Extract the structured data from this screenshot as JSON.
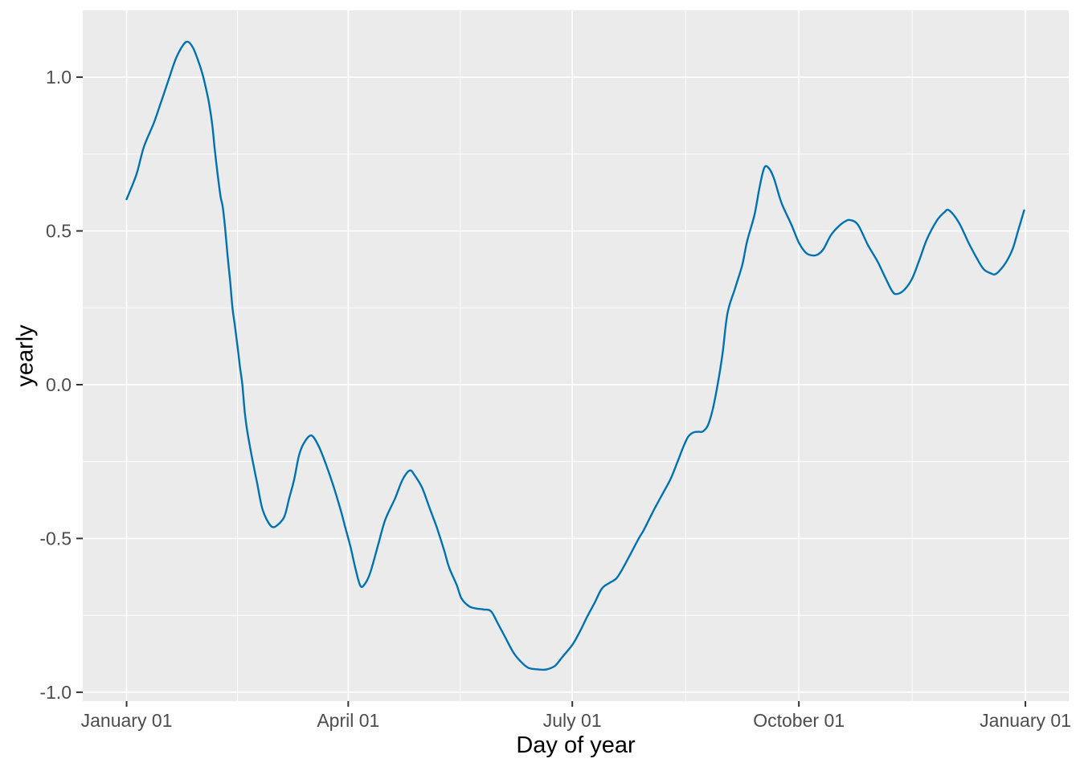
{
  "figure": {
    "background": "#FFFFFF",
    "panel_background": "#EBEBEB",
    "grid_color": "#FFFFFF",
    "tick_color": "#333333",
    "axis_text_color": "#4D4D4D",
    "axis_title_color": "#000000"
  },
  "chart_data": {
    "type": "line",
    "title": "",
    "xlabel": "Day of year",
    "ylabel": "yearly",
    "legend": "none",
    "grid": true,
    "xlim": [
      -17.8,
      382.6
    ],
    "ylim": [
      -1.029,
      1.217
    ],
    "x_ticks": [
      {
        "day": 0,
        "label": "January 01"
      },
      {
        "day": 90,
        "label": "April 01"
      },
      {
        "day": 181,
        "label": "July 01"
      },
      {
        "day": 273,
        "label": "October 01"
      },
      {
        "day": 365,
        "label": "January 01"
      }
    ],
    "x_minor_days": [
      45,
      135.5,
      227,
      319
    ],
    "y_ticks": [
      {
        "value": 1.0,
        "label": "1.0"
      },
      {
        "value": 0.5,
        "label": "0.5"
      },
      {
        "value": 0.0,
        "label": "0.0"
      },
      {
        "value": -0.5,
        "label": "-0.5"
      },
      {
        "value": -1.0,
        "label": "-1.0"
      }
    ],
    "y_minor_values": [
      0.75,
      0.25,
      -0.25,
      -0.75
    ],
    "series": [
      {
        "name": "yearly",
        "color": "#0072B2",
        "points": [
          [
            0,
            0.603
          ],
          [
            4,
            0.684
          ],
          [
            7,
            0.773
          ],
          [
            11,
            0.85
          ],
          [
            14,
            0.919
          ],
          [
            17,
            0.99
          ],
          [
            20,
            1.06
          ],
          [
            23,
            1.105
          ],
          [
            25,
            1.115
          ],
          [
            27,
            1.095
          ],
          [
            29,
            1.055
          ],
          [
            31,
            1.005
          ],
          [
            33,
            0.935
          ],
          [
            34,
            0.89
          ],
          [
            35,
            0.83
          ],
          [
            36,
            0.75
          ],
          [
            38,
            0.62
          ],
          [
            39,
            0.58
          ],
          [
            40,
            0.51
          ],
          [
            41,
            0.42
          ],
          [
            42,
            0.34
          ],
          [
            43,
            0.25
          ],
          [
            44,
            0.19
          ],
          [
            45,
            0.128
          ],
          [
            46,
            0.06
          ],
          [
            47,
            0.0
          ],
          [
            48,
            -0.09
          ],
          [
            49,
            -0.151
          ],
          [
            51,
            -0.24
          ],
          [
            53,
            -0.32
          ],
          [
            55,
            -0.4
          ],
          [
            57,
            -0.44
          ],
          [
            59,
            -0.462
          ],
          [
            61,
            -0.458
          ],
          [
            64,
            -0.43
          ],
          [
            66,
            -0.37
          ],
          [
            68,
            -0.31
          ],
          [
            70,
            -0.23
          ],
          [
            72,
            -0.19
          ],
          [
            75,
            -0.165
          ],
          [
            78,
            -0.2
          ],
          [
            81,
            -0.26
          ],
          [
            84,
            -0.33
          ],
          [
            87,
            -0.41
          ],
          [
            89,
            -0.47
          ],
          [
            91,
            -0.53
          ],
          [
            93,
            -0.6
          ],
          [
            95,
            -0.655
          ],
          [
            97,
            -0.645
          ],
          [
            99,
            -0.61
          ],
          [
            102,
            -0.525
          ],
          [
            105,
            -0.44
          ],
          [
            109,
            -0.37
          ],
          [
            112,
            -0.31
          ],
          [
            115,
            -0.279
          ],
          [
            117,
            -0.295
          ],
          [
            120,
            -0.335
          ],
          [
            123,
            -0.4
          ],
          [
            126,
            -0.465
          ],
          [
            129,
            -0.54
          ],
          [
            131,
            -0.595
          ],
          [
            134,
            -0.65
          ],
          [
            136,
            -0.695
          ],
          [
            139,
            -0.72
          ],
          [
            142,
            -0.728
          ],
          [
            145,
            -0.731
          ],
          [
            148,
            -0.737
          ],
          [
            151,
            -0.78
          ],
          [
            154,
            -0.825
          ],
          [
            157,
            -0.87
          ],
          [
            160,
            -0.9
          ],
          [
            163,
            -0.92
          ],
          [
            166,
            -0.925
          ],
          [
            169,
            -0.927
          ],
          [
            171,
            -0.925
          ],
          [
            174,
            -0.914
          ],
          [
            177,
            -0.885
          ],
          [
            181,
            -0.846
          ],
          [
            184,
            -0.804
          ],
          [
            187,
            -0.755
          ],
          [
            190,
            -0.71
          ],
          [
            193,
            -0.663
          ],
          [
            196,
            -0.645
          ],
          [
            199,
            -0.629
          ],
          [
            202,
            -0.59
          ],
          [
            205,
            -0.545
          ],
          [
            208,
            -0.5
          ],
          [
            210,
            -0.473
          ],
          [
            213,
            -0.425
          ],
          [
            215,
            -0.394
          ],
          [
            218,
            -0.35
          ],
          [
            221,
            -0.305
          ],
          [
            224,
            -0.245
          ],
          [
            226,
            -0.204
          ],
          [
            228,
            -0.17
          ],
          [
            230,
            -0.156
          ],
          [
            232,
            -0.153
          ],
          [
            234,
            -0.152
          ],
          [
            236,
            -0.133
          ],
          [
            238,
            -0.081
          ],
          [
            240,
            0.0
          ],
          [
            242,
            0.1
          ],
          [
            244,
            0.232
          ],
          [
            247,
            0.311
          ],
          [
            250,
            0.389
          ],
          [
            252,
            0.467
          ],
          [
            255,
            0.553
          ],
          [
            257,
            0.64
          ],
          [
            259,
            0.706
          ],
          [
            261,
            0.702
          ],
          [
            263,
            0.668
          ],
          [
            266,
            0.59
          ],
          [
            270,
            0.52
          ],
          [
            273,
            0.462
          ],
          [
            276,
            0.428
          ],
          [
            279,
            0.42
          ],
          [
            281,
            0.425
          ],
          [
            283,
            0.441
          ],
          [
            286,
            0.486
          ],
          [
            289,
            0.514
          ],
          [
            292,
            0.532
          ],
          [
            294,
            0.535
          ],
          [
            297,
            0.52
          ],
          [
            301,
            0.455
          ],
          [
            305,
            0.4
          ],
          [
            308,
            0.35
          ],
          [
            311,
            0.303
          ],
          [
            313,
            0.295
          ],
          [
            316,
            0.31
          ],
          [
            319,
            0.345
          ],
          [
            322,
            0.407
          ],
          [
            325,
            0.473
          ],
          [
            329,
            0.533
          ],
          [
            332,
            0.56
          ],
          [
            334,
            0.567
          ],
          [
            338,
            0.527
          ],
          [
            342,
            0.46
          ],
          [
            345,
            0.415
          ],
          [
            348,
            0.376
          ],
          [
            351,
            0.362
          ],
          [
            353,
            0.36
          ],
          [
            356,
            0.385
          ],
          [
            358,
            0.41
          ],
          [
            360,
            0.445
          ],
          [
            362,
            0.5
          ],
          [
            364.5,
            0.567
          ]
        ]
      }
    ]
  }
}
